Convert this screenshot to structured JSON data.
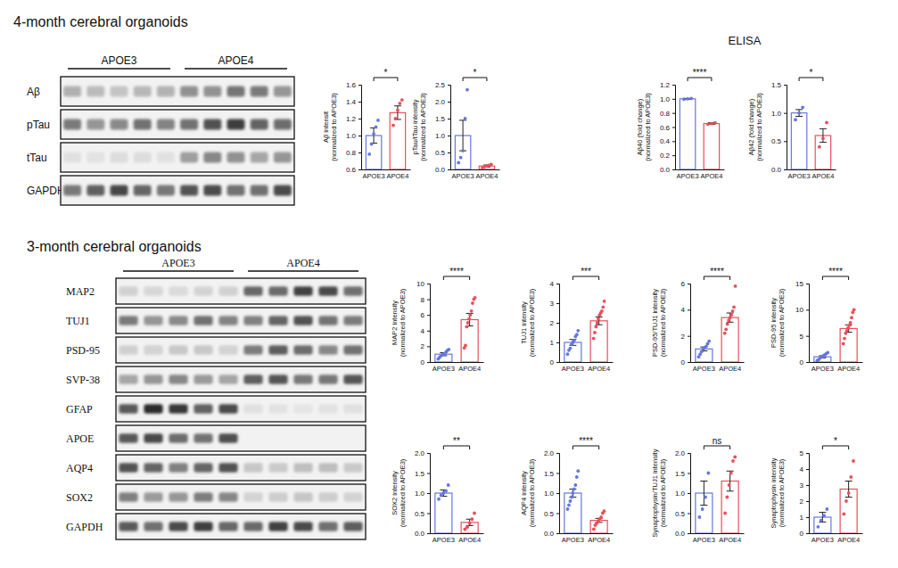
{
  "sections": [
    {
      "title": "4-month cerebral organoids",
      "groups": [
        "APOE3",
        "APOE4"
      ],
      "rows": [
        "Aβ",
        "pTau",
        "tTau",
        "GAPDH"
      ]
    },
    {
      "title": "3-month cerebral organoids",
      "groups": [
        "APOE3",
        "APOE4"
      ],
      "rows": [
        "MAP2",
        "TUJ1",
        "PSD-95",
        "SVP-38",
        "GFAP",
        "APOE",
        "AQP4",
        "SOX2",
        "GAPDH"
      ]
    }
  ],
  "labels": {
    "elisa": "ELISA"
  },
  "chart_data": [
    {
      "type": "bar",
      "categories": [
        "APOE3",
        "APOE4"
      ],
      "values": [
        1.0,
        1.27
      ],
      "errors": [
        0.09,
        0.08
      ],
      "points": [
        [
          0.78,
          0.9,
          1.02,
          1.1,
          1.18
        ],
        [
          1.12,
          1.2,
          1.3,
          1.38,
          1.42
        ]
      ],
      "colors": [
        "#6677dd",
        "#e8505a"
      ],
      "ylabel": [
        "Aβ intensit",
        "(normalized to APOE3)"
      ],
      "annotation": "*",
      "ylim": [
        0.6,
        1.6
      ],
      "yticks": [
        0.6,
        0.8,
        {
          "value": 1,
          "label": "1.0"
        },
        1.2,
        1.4,
        1.6
      ]
    },
    {
      "type": "bar",
      "categories": [
        "APOE3",
        "APOE4"
      ],
      "values": [
        1.0,
        0.1
      ],
      "errors": [
        0.45,
        0.03
      ],
      "points": [
        [
          0.2,
          0.35,
          0.55,
          1.5,
          2.35
        ],
        [
          0.05,
          0.08,
          0.1,
          0.12,
          0.15
        ]
      ],
      "colors": [
        "#6677dd",
        "#e8505a"
      ],
      "ylabel": [
        "pTau/tTau intensity",
        "(normalized to APOE3)"
      ],
      "annotation": "*",
      "ylim": [
        0,
        2.5
      ],
      "yticks": [
        {
          "value": 0,
          "label": "0.0"
        },
        0.5,
        {
          "value": 1,
          "label": "1.0"
        },
        1.5,
        {
          "value": 2,
          "label": "2.0"
        },
        2.5
      ]
    },
    {
      "type": "bar",
      "categories": [
        "APOE3",
        "APOE4"
      ],
      "values": [
        1.0,
        0.65
      ],
      "errors": [
        0.005,
        0.01
      ],
      "points": [
        [
          0.995,
          1.0,
          1.005
        ],
        [
          0.64,
          0.65,
          0.66
        ]
      ],
      "colors": [
        "#6677dd",
        "#e8505a"
      ],
      "ylabel": [
        "Aβ40 (fold change)",
        "(normalized to APOE3)"
      ],
      "annotation": "****",
      "ylim": [
        0,
        1.2
      ],
      "yticks": [
        {
          "value": 0,
          "label": "0.0"
        },
        0.2,
        0.4,
        0.6,
        0.8,
        {
          "value": 1,
          "label": "1.0"
        },
        1.2
      ]
    },
    {
      "type": "bar",
      "categories": [
        "APOE3",
        "APOE4"
      ],
      "values": [
        1.0,
        0.6
      ],
      "errors": [
        0.06,
        0.12
      ],
      "points": [
        [
          0.88,
          1.0,
          1.1
        ],
        [
          0.4,
          0.55,
          0.83
        ]
      ],
      "colors": [
        "#6677dd",
        "#e8505a"
      ],
      "ylabel": [
        "Aβ42 (fold change)",
        "(normalized to APOE3)"
      ],
      "annotation": "*",
      "ylim": [
        0,
        1.5
      ],
      "yticks": [
        {
          "value": 0,
          "label": "0.0"
        },
        0.5,
        {
          "value": 1,
          "label": "1.0"
        },
        1.5
      ]
    },
    {
      "type": "bar",
      "categories": [
        "APOE3",
        "APOE4"
      ],
      "values": [
        1.0,
        5.4
      ],
      "errors": [
        0.2,
        0.8
      ],
      "points": [
        [
          0.4,
          0.6,
          0.8,
          0.9,
          1.0,
          1.1,
          1.3,
          1.5,
          1.6
        ],
        [
          1.8,
          2.1,
          4.5,
          5.0,
          5.5,
          6.0,
          6.5,
          7.5,
          8.0,
          8.2
        ]
      ],
      "colors": [
        "#6677dd",
        "#e8505a"
      ],
      "ylabel": [
        "MAP2 intensity",
        "(normalized to APOE3)"
      ],
      "annotation": "****",
      "ylim": [
        0,
        10
      ],
      "yticks": [
        0,
        2,
        4,
        6,
        8,
        10
      ]
    },
    {
      "type": "bar",
      "categories": [
        "APOE3",
        "APOE4"
      ],
      "values": [
        1.0,
        2.1
      ],
      "errors": [
        0.15,
        0.2
      ],
      "points": [
        [
          0.4,
          0.6,
          0.7,
          0.9,
          1.0,
          1.1,
          1.3,
          1.4,
          1.6
        ],
        [
          1.2,
          1.5,
          1.8,
          2.0,
          2.2,
          2.4,
          2.5,
          2.6,
          2.8,
          3.1
        ]
      ],
      "colors": [
        "#6677dd",
        "#e8505a"
      ],
      "ylabel": [
        "TUJ1 intensity",
        "(normalized to APOE3)"
      ],
      "annotation": "***",
      "ylim": [
        0,
        4
      ],
      "yticks": [
        0,
        1,
        2,
        3,
        4
      ]
    },
    {
      "type": "bar",
      "categories": [
        "APOE3",
        "APOE4"
      ],
      "values": [
        1.0,
        3.4
      ],
      "errors": [
        0.15,
        0.35
      ],
      "points": [
        [
          0.4,
          0.6,
          0.8,
          1.0,
          1.1,
          1.2,
          1.4,
          1.6
        ],
        [
          2.2,
          2.5,
          2.9,
          3.2,
          3.4,
          3.6,
          3.9,
          4.2,
          5.8
        ]
      ],
      "colors": [
        "#6677dd",
        "#e8505a"
      ],
      "ylabel": [
        "PSD-95/TUJ1 intensity",
        "(normalized to APOE3)"
      ],
      "annotation": "****",
      "ylim": [
        0,
        6
      ],
      "yticks": [
        0,
        2,
        4,
        6
      ]
    },
    {
      "type": "bar",
      "categories": [
        "APOE3",
        "APOE4"
      ],
      "values": [
        1.0,
        6.4
      ],
      "errors": [
        0.2,
        0.7
      ],
      "points": [
        [
          0.3,
          0.5,
          0.8,
          1.0,
          1.2,
          1.4,
          1.6,
          1.8
        ],
        [
          3.5,
          4.5,
          5.5,
          6.0,
          6.5,
          7.0,
          7.5,
          8.5,
          9.5,
          10.0
        ]
      ],
      "colors": [
        "#6677dd",
        "#e8505a"
      ],
      "ylabel": [
        "PSD-95 intensity",
        "(normalized to APOE3)"
      ],
      "annotation": "****",
      "ylim": [
        0,
        15
      ],
      "yticks": [
        0,
        5,
        10,
        15
      ]
    },
    {
      "type": "bar",
      "categories": [
        "APOE3",
        "APOE4"
      ],
      "values": [
        1.0,
        0.27
      ],
      "errors": [
        0.08,
        0.08
      ],
      "points": [
        [
          0.85,
          0.95,
          1.0,
          1.05,
          1.2
        ],
        [
          0.1,
          0.15,
          0.25,
          0.35,
          0.5
        ]
      ],
      "colors": [
        "#6677dd",
        "#e8505a"
      ],
      "ylabel": [
        "SOX2 intensity",
        "(normalized to APOE3)"
      ],
      "annotation": "**",
      "ylim": [
        0,
        2
      ],
      "yticks": [
        {
          "value": 0,
          "label": "0.0"
        },
        0.5,
        {
          "value": 1,
          "label": "1.0"
        },
        1.5,
        {
          "value": 2,
          "label": "2.0"
        }
      ]
    },
    {
      "type": "bar",
      "categories": [
        "APOE3",
        "APOE4"
      ],
      "values": [
        1.0,
        0.32
      ],
      "errors": [
        0.1,
        0.05
      ],
      "points": [
        [
          0.6,
          0.7,
          0.8,
          0.9,
          1.0,
          1.1,
          1.2,
          1.4,
          1.55
        ],
        [
          0.1,
          0.2,
          0.25,
          0.3,
          0.35,
          0.4,
          0.5,
          0.55
        ]
      ],
      "colors": [
        "#6677dd",
        "#e8505a"
      ],
      "ylabel": [
        "AQP4 intensity",
        "(normalized to APOE3)"
      ],
      "annotation": "****",
      "ylim": [
        0,
        2
      ],
      "yticks": [
        {
          "value": 0,
          "label": "0.0"
        },
        0.5,
        {
          "value": 1,
          "label": "1.0"
        },
        1.5,
        {
          "value": 2,
          "label": "2.0"
        }
      ]
    },
    {
      "type": "bar",
      "categories": [
        "APOE3",
        "APOE4"
      ],
      "values": [
        1.0,
        1.3
      ],
      "errors": [
        0.3,
        0.25
      ],
      "points": [
        [
          0.4,
          0.6,
          0.9,
          1.5
        ],
        [
          0.5,
          0.9,
          1.2,
          1.5,
          1.8,
          1.9
        ]
      ],
      "colors": [
        "#6677dd",
        "#e8505a"
      ],
      "ylabel": [
        "Synaptophysin/TUJ1 intensity",
        "(normalized to APOE3)"
      ],
      "annotation": "ns",
      "ylim": [
        0,
        2
      ],
      "yticks": [
        {
          "value": 0,
          "label": "0.0"
        },
        0.5,
        {
          "value": 1,
          "label": "1.0"
        },
        1.5,
        {
          "value": 2,
          "label": "2.0"
        }
      ]
    },
    {
      "type": "bar",
      "categories": [
        "APOE3",
        "APOE4"
      ],
      "values": [
        1.0,
        2.75
      ],
      "errors": [
        0.3,
        0.5
      ],
      "points": [
        [
          0.4,
          0.8,
          1.1,
          1.5
        ],
        [
          1.2,
          2.0,
          2.5,
          3.5,
          4.5
        ]
      ],
      "colors": [
        "#6677dd",
        "#e8505a"
      ],
      "ylabel": [
        "Synaptophysin intensity",
        "(normalized to APOE3)"
      ],
      "annotation": "*",
      "ylim": [
        0,
        5
      ],
      "yticks": [
        0,
        1,
        2,
        3,
        4,
        5
      ]
    }
  ]
}
